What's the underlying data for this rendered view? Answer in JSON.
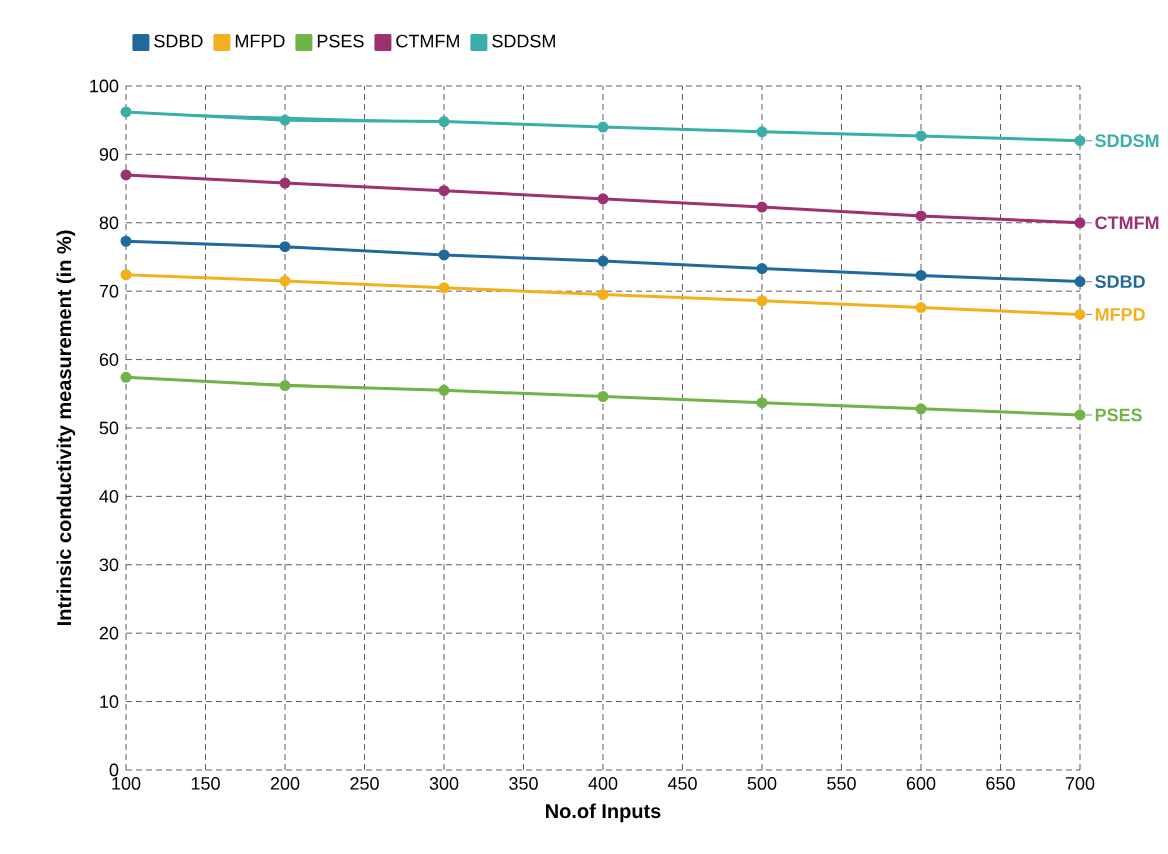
{
  "chart_data": {
    "type": "line",
    "xlabel": "No.of Inputs",
    "ylabel": "Intrinsic conductivity measurement (in %)",
    "x": [
      100,
      200,
      300,
      400,
      500,
      600,
      700
    ],
    "xlim": [
      100,
      700
    ],
    "xticks": [
      100,
      150,
      200,
      250,
      300,
      350,
      400,
      450,
      500,
      550,
      600,
      650,
      700
    ],
    "ylim": [
      0,
      100
    ],
    "yticks": [
      0,
      10,
      20,
      30,
      40,
      50,
      60,
      70,
      80,
      90,
      100
    ],
    "grid": true,
    "legend": "top left",
    "marker": "circle",
    "line_style": "solid",
    "series": [
      {
        "name": "SDBD",
        "color": "#1f6a9a",
        "values": [
          77.3,
          76.5,
          75.3,
          74.4,
          73.3,
          72.3,
          71.4
        ]
      },
      {
        "name": "MFPD",
        "color": "#f2b01e",
        "values": [
          72.4,
          71.5,
          70.5,
          69.5,
          68.6,
          67.6,
          66.6
        ]
      },
      {
        "name": "PSES",
        "color": "#72b347",
        "values": [
          57.4,
          56.2,
          55.5,
          54.6,
          53.7,
          52.8,
          51.9
        ]
      },
      {
        "name": "CTMFM",
        "color": "#9b3171",
        "values": [
          87,
          85.8,
          84.7,
          83.5,
          82.3,
          81,
          80
        ]
      },
      {
        "name": "SDDSM",
        "color": "#3aaea9",
        "values": [
          96.2,
          95,
          94.8,
          94,
          93.3,
          92.7,
          92
        ]
      }
    ]
  }
}
